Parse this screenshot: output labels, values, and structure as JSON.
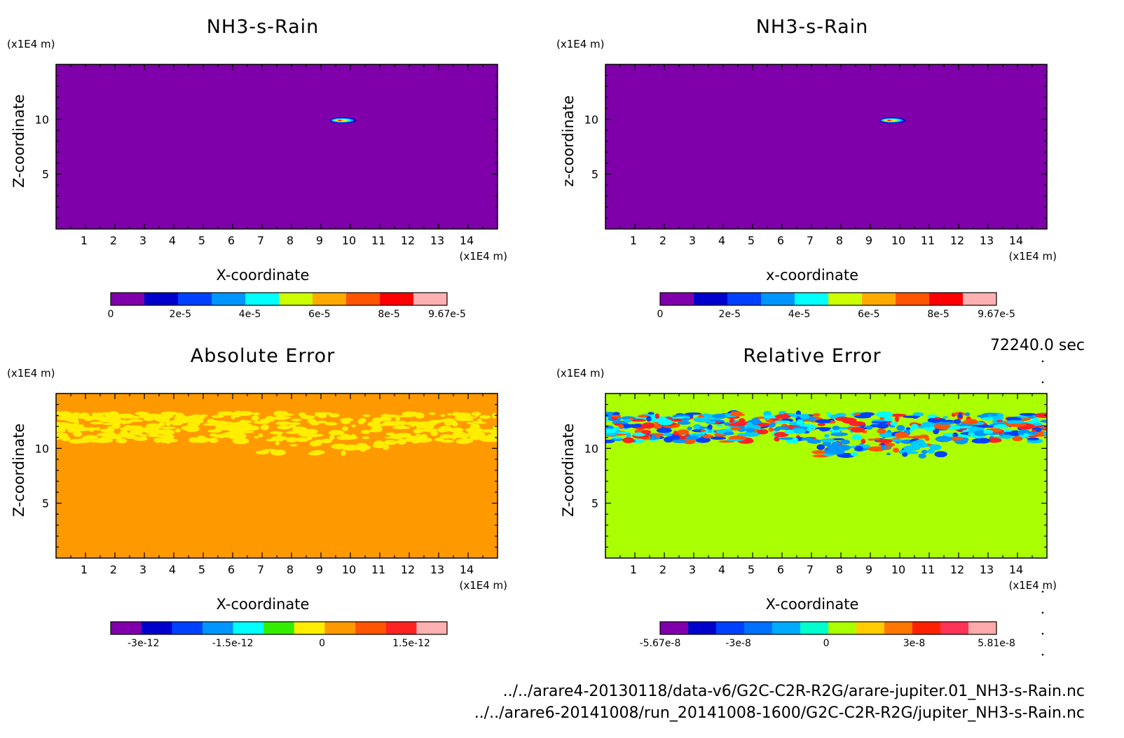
{
  "figure": {
    "time_label": "72240.0 sec",
    "file_lines": [
      "../../arare4-20130118/data-v6/G2C-C2R-R2G/arare-jupiter.01_NH3-s-Rain.nc",
      "../../arare6-20141008/run_20141008-1600/G2C-C2R-R2G/jupiter_NH3-s-Rain.nc"
    ]
  },
  "chart_data": [
    {
      "type": "heatmap",
      "title": "NH3-s-Rain",
      "xlabel": "X-coordinate",
      "ylabel": "Z-coordinate",
      "x_unit": "(x1E4 m)",
      "y_unit": "(x1E4 m)",
      "xlim": [
        0,
        15
      ],
      "ylim": [
        0,
        15
      ],
      "xticks": [
        1,
        2,
        3,
        4,
        5,
        6,
        7,
        8,
        9,
        10,
        11,
        12,
        13,
        14
      ],
      "yticks": [
        5,
        10
      ],
      "background_color": "#7f00aa",
      "features": [
        {
          "kind": "blob",
          "x": [
            9.3,
            10.2
          ],
          "z": [
            9.7,
            10.1
          ],
          "peak": 9.67e-05
        }
      ],
      "colorbar": {
        "colors": [
          "#7f00aa",
          "#0000cc",
          "#0040ff",
          "#0095ff",
          "#00ffff",
          "#ccff00",
          "#ffaa00",
          "#ff5500",
          "#ff0000",
          "#ffb0b0"
        ],
        "tick_labels": [
          "0",
          "2e-5",
          "4e-5",
          "6e-5",
          "8e-5",
          "9.67e-5"
        ],
        "tick_positions": [
          0,
          2,
          4,
          6,
          8,
          9.67
        ],
        "range": [
          0,
          9.67
        ]
      }
    },
    {
      "type": "heatmap",
      "title": "NH3-s-Rain",
      "xlabel": "x-coordinate",
      "ylabel": "z-coordinate",
      "x_unit": "(x1E4 m)",
      "y_unit": "(x1E4 m)",
      "xlim": [
        0,
        15
      ],
      "ylim": [
        0,
        15
      ],
      "xticks": [
        1,
        2,
        3,
        4,
        5,
        6,
        7,
        8,
        9,
        10,
        11,
        12,
        13,
        14
      ],
      "yticks": [
        5,
        10
      ],
      "background_color": "#7f00aa",
      "features": [
        {
          "kind": "blob",
          "x": [
            9.3,
            10.2
          ],
          "z": [
            9.7,
            10.1
          ],
          "peak": 9.67e-05
        }
      ],
      "colorbar": {
        "colors": [
          "#7f00aa",
          "#0000cc",
          "#0040ff",
          "#0095ff",
          "#00ffff",
          "#ccff00",
          "#ffaa00",
          "#ff5500",
          "#ff0000",
          "#ffb0b0"
        ],
        "tick_labels": [
          "0",
          "2e-5",
          "4e-5",
          "6e-5",
          "8e-5",
          "9.67e-5"
        ],
        "tick_positions": [
          0,
          2,
          4,
          6,
          8,
          9.67
        ],
        "range": [
          0,
          9.67
        ]
      }
    },
    {
      "type": "heatmap",
      "title": "Absolute Error",
      "xlabel": "X-coordinate",
      "ylabel": "Z-coordinate",
      "x_unit": "(x1E4 m)",
      "y_unit": "(x1E4 m)",
      "xlim": [
        0,
        15
      ],
      "ylim": [
        0,
        15
      ],
      "xticks": [
        1,
        2,
        3,
        4,
        5,
        6,
        7,
        8,
        9,
        10,
        11,
        12,
        13,
        14
      ],
      "yticks": [
        5,
        10
      ],
      "background_color": "#ff9900",
      "features": [
        {
          "kind": "noise_band",
          "z": [
            9.5,
            13.2
          ],
          "colors": [
            "#ffee00"
          ]
        }
      ],
      "colorbar": {
        "colors": [
          "#7f00aa",
          "#0000cc",
          "#0040ff",
          "#0095ff",
          "#00ffff",
          "#33ee00",
          "#ffee00",
          "#ff9900",
          "#ff5500",
          "#ff2222",
          "#ffb0b0"
        ],
        "tick_labels": [
          "-3e-12",
          "-1.5e-12",
          "0",
          "1.5e-12"
        ],
        "tick_positions": [
          -3.0,
          -1.5,
          0,
          1.5
        ],
        "range": [
          -3.55,
          2.1
        ]
      }
    },
    {
      "type": "heatmap",
      "title": "Relative Error",
      "xlabel": "X-coordinate",
      "ylabel": "Z-coordinate",
      "x_unit": "(x1E4 m)",
      "y_unit": "(x1E4 m)",
      "xlim": [
        0,
        15
      ],
      "ylim": [
        0,
        15
      ],
      "xticks": [
        1,
        2,
        3,
        4,
        5,
        6,
        7,
        8,
        9,
        10,
        11,
        12,
        13,
        14
      ],
      "yticks": [
        5,
        10
      ],
      "background_color": "#aaff00",
      "features": [
        {
          "kind": "noise_band",
          "z": [
            9.3,
            13.2
          ],
          "colors": [
            "#0095ff",
            "#00ccff",
            "#0040ff",
            "#ff5500",
            "#ff2222",
            "#00ffff"
          ]
        }
      ],
      "colorbar": {
        "colors": [
          "#7f00aa",
          "#0000cc",
          "#0040ff",
          "#0070ff",
          "#00aaff",
          "#00ffcc",
          "#aaff00",
          "#ffcc00",
          "#ff7700",
          "#ff2200",
          "#ff3355",
          "#ffaaaa"
        ],
        "tick_labels": [
          "-5.67e-8",
          "-3e-8",
          "0",
          "3e-8",
          "5.81e-8"
        ],
        "tick_positions": [
          -5.67,
          -3.0,
          0,
          3.0,
          5.81
        ],
        "range": [
          -5.67,
          5.81
        ]
      }
    }
  ]
}
